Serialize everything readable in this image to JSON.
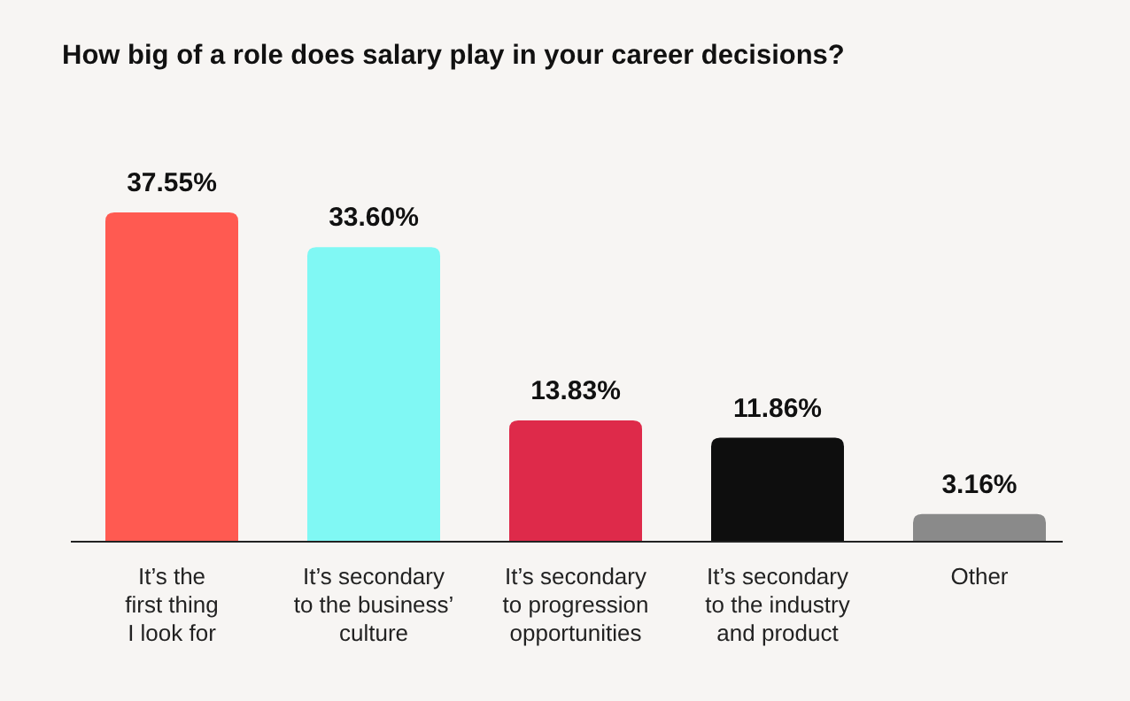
{
  "chart_data": {
    "type": "bar",
    "title": "How big of a role does salary play in your career decisions?",
    "categories": [
      "It’s the\nfirst thing\nI look for",
      "It’s secondary\nto the business’\nculture",
      "It’s secondary\nto progression\nopportunities",
      "It’s secondary\nto the industry\nand product",
      "Other"
    ],
    "values": [
      37.55,
      33.6,
      13.83,
      11.86,
      3.16
    ],
    "value_labels": [
      "37.55%",
      "33.60%",
      "13.83%",
      "11.86%",
      "3.16%"
    ],
    "colors": [
      "#ff5a51",
      "#80f8f4",
      "#de2a4a",
      "#0e0e0e",
      "#8a8a8a"
    ]
  }
}
